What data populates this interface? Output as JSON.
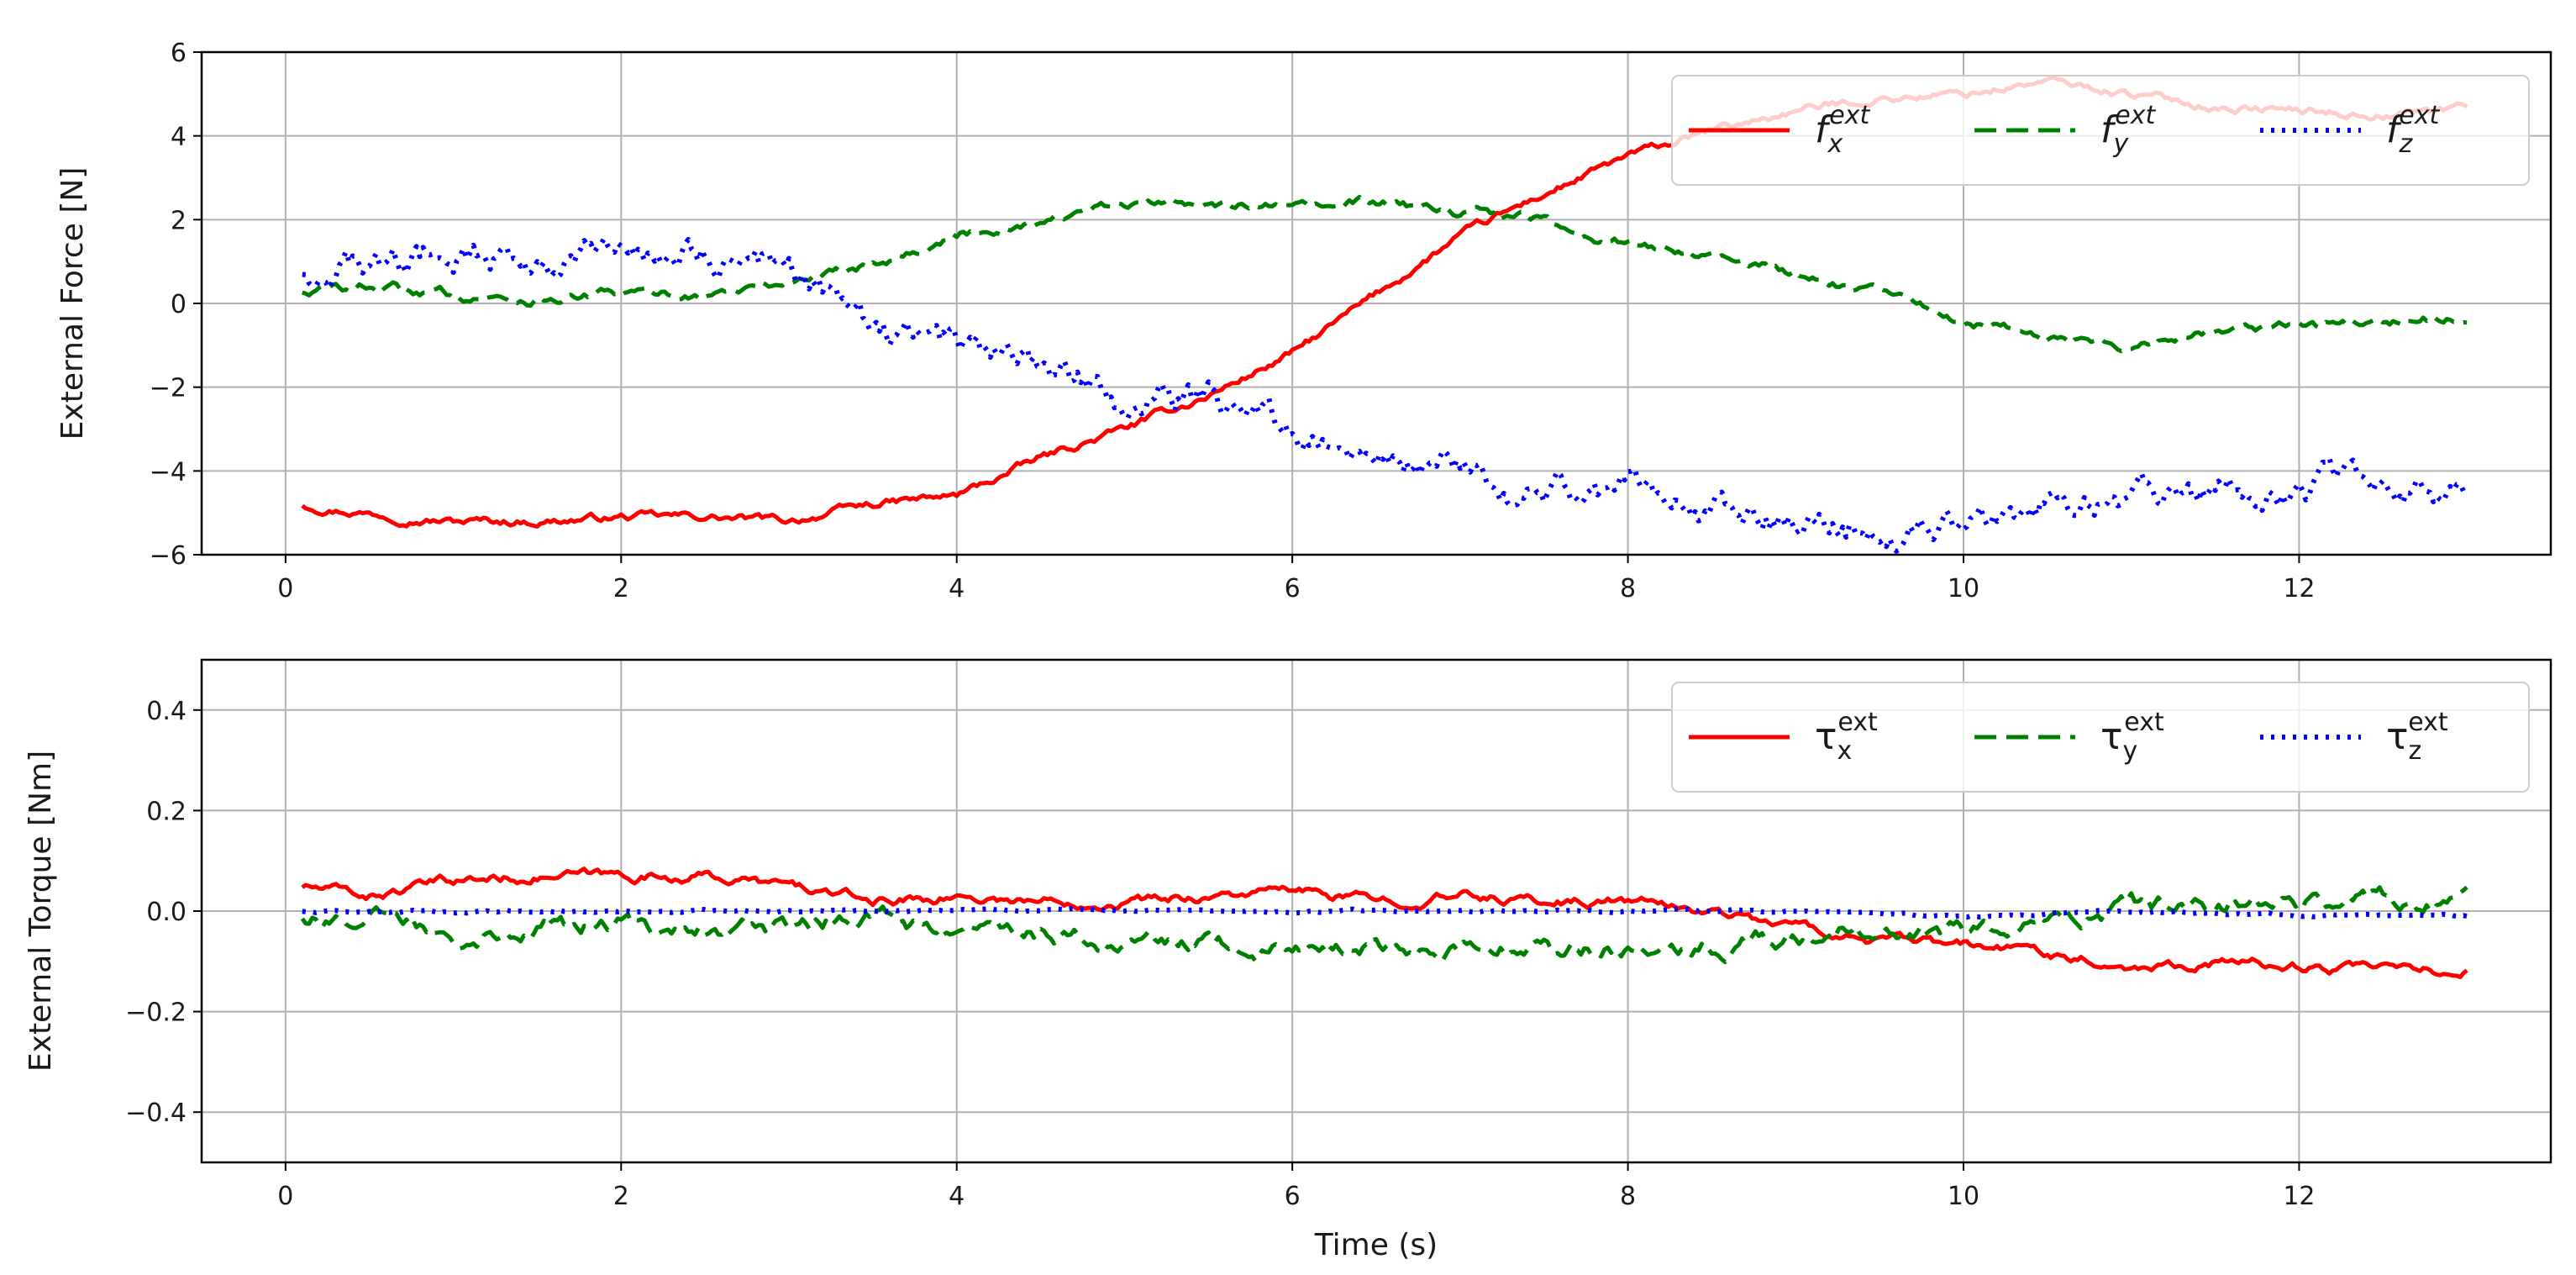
{
  "chart_data": [
    {
      "type": "line",
      "ylabel": "External Force [N]",
      "xlabel": "",
      "xlim": [
        -0.5,
        13.5
      ],
      "ylim": [
        -6,
        6
      ],
      "xticks": [
        0,
        2,
        4,
        6,
        8,
        10,
        12
      ],
      "yticks": [
        -6,
        -4,
        -2,
        0,
        2,
        4,
        6
      ],
      "ytick_labels": [
        "−6",
        "−4",
        "−2",
        "0",
        "2",
        "4",
        "6"
      ],
      "grid": true,
      "legend_position": "top-right",
      "series": [
        {
          "name": "f_x^ext",
          "legend": {
            "base": "f",
            "sub": "x",
            "sup": "ext",
            "italic": true
          },
          "color": "#ff0000",
          "style": "solid",
          "noise": 0.12,
          "x": [
            0.1,
            0.5,
            1.0,
            1.5,
            2.0,
            2.5,
            3.0,
            3.5,
            4.0,
            4.5,
            5.0,
            5.5,
            6.0,
            6.5,
            7.0,
            7.5,
            8.0,
            8.5,
            9.0,
            9.5,
            10.0,
            10.5,
            11.0,
            11.5,
            12.0,
            12.5,
            13.0
          ],
          "y": [
            -4.8,
            -5.0,
            -5.2,
            -5.2,
            -5.1,
            -5.1,
            -5.2,
            -4.8,
            -4.6,
            -3.7,
            -3.0,
            -2.2,
            -1.2,
            0.2,
            1.6,
            2.6,
            3.5,
            4.1,
            4.6,
            4.9,
            5.0,
            5.3,
            5.0,
            4.7,
            4.6,
            4.5,
            4.7
          ]
        },
        {
          "name": "f_y^ext",
          "legend": {
            "base": "f",
            "sub": "y",
            "sup": "ext",
            "italic": true
          },
          "color": "#008000",
          "style": "dashed",
          "noise": 0.15,
          "x": [
            0.1,
            0.5,
            1.0,
            1.5,
            2.0,
            2.5,
            3.0,
            3.5,
            4.0,
            4.5,
            5.0,
            5.5,
            6.0,
            6.5,
            7.0,
            7.5,
            8.0,
            8.5,
            9.0,
            9.5,
            10.0,
            10.5,
            11.0,
            11.5,
            12.0,
            12.5,
            13.0
          ],
          "y": [
            0.3,
            0.4,
            0.2,
            0.1,
            0.2,
            0.2,
            0.5,
            1.0,
            1.6,
            2.0,
            2.3,
            2.5,
            2.2,
            2.4,
            2.2,
            2.0,
            1.4,
            1.2,
            0.7,
            0.2,
            -0.4,
            -0.8,
            -1.0,
            -0.6,
            -0.5,
            -0.5,
            -0.3
          ]
        },
        {
          "name": "f_z^ext",
          "legend": {
            "base": "f",
            "sub": "z",
            "sup": "ext",
            "italic": true
          },
          "color": "#0000ff",
          "style": "dotted",
          "noise": 0.45,
          "x": [
            0.1,
            0.5,
            1.0,
            1.5,
            2.0,
            2.5,
            3.0,
            3.5,
            4.0,
            4.5,
            5.0,
            5.5,
            6.0,
            6.5,
            7.0,
            7.5,
            8.0,
            8.5,
            9.0,
            9.5,
            10.0,
            10.5,
            11.0,
            11.5,
            12.0,
            12.5,
            13.0
          ],
          "y": [
            0.8,
            0.9,
            1.1,
            1.0,
            1.1,
            1.3,
            0.9,
            -0.6,
            -1.0,
            -1.5,
            -2.3,
            -2.3,
            -3.0,
            -3.6,
            -4.0,
            -4.5,
            -4.4,
            -5.0,
            -5.3,
            -5.4,
            -5.2,
            -4.7,
            -4.8,
            -4.4,
            -4.5,
            -4.2,
            -4.8
          ]
        }
      ]
    },
    {
      "type": "line",
      "ylabel": "External Torque [Nm]",
      "xlabel": "Time (s)",
      "xlim": [
        -0.5,
        13.5
      ],
      "ylim": [
        -0.5,
        0.5
      ],
      "xticks": [
        0,
        2,
        4,
        6,
        8,
        10,
        12
      ],
      "yticks": [
        -0.4,
        -0.2,
        0.0,
        0.2,
        0.4
      ],
      "ytick_labels": [
        "−0.4",
        "−0.2",
        "0.0",
        "0.2",
        "0.4"
      ],
      "grid": true,
      "legend_position": "top-right",
      "series": [
        {
          "name": "τ_x^ext",
          "legend": {
            "base": "τ",
            "sub": "x",
            "sup": "ext",
            "italic": false
          },
          "color": "#ff0000",
          "style": "solid",
          "noise": 0.012,
          "x": [
            0.1,
            0.5,
            1.0,
            1.5,
            2.0,
            2.5,
            3.0,
            3.5,
            4.0,
            4.5,
            5.0,
            5.5,
            6.0,
            6.5,
            7.0,
            7.5,
            8.0,
            8.5,
            9.0,
            9.5,
            10.0,
            10.5,
            11.0,
            11.5,
            12.0,
            12.5,
            13.0
          ],
          "y": [
            0.05,
            0.03,
            0.06,
            0.07,
            0.07,
            0.07,
            0.05,
            0.02,
            0.03,
            0.02,
            0.02,
            0.03,
            0.04,
            0.02,
            0.03,
            0.02,
            0.02,
            0.0,
            -0.03,
            -0.06,
            -0.07,
            -0.08,
            -0.11,
            -0.1,
            -0.11,
            -0.12,
            -0.12
          ]
        },
        {
          "name": "τ_y^ext",
          "legend": {
            "base": "τ",
            "sub": "y",
            "sup": "ext",
            "italic": false
          },
          "color": "#008000",
          "style": "dashed",
          "noise": 0.022,
          "x": [
            0.1,
            0.5,
            1.0,
            1.5,
            2.0,
            2.5,
            3.0,
            3.5,
            4.0,
            4.5,
            5.0,
            5.5,
            6.0,
            6.5,
            7.0,
            7.5,
            8.0,
            8.5,
            9.0,
            9.5,
            10.0,
            10.5,
            11.0,
            11.5,
            12.0,
            12.5,
            13.0
          ],
          "y": [
            -0.01,
            -0.01,
            -0.04,
            -0.03,
            -0.03,
            -0.03,
            -0.03,
            -0.01,
            -0.05,
            -0.04,
            -0.06,
            -0.07,
            -0.08,
            -0.07,
            -0.07,
            -0.07,
            -0.08,
            -0.07,
            -0.05,
            -0.04,
            -0.04,
            -0.03,
            0.01,
            0.01,
            0.02,
            0.02,
            0.01
          ]
        },
        {
          "name": "τ_z^ext",
          "legend": {
            "base": "τ",
            "sub": "z",
            "sup": "ext",
            "italic": false
          },
          "color": "#0000ff",
          "style": "dotted",
          "noise": 0.003,
          "x": [
            0.1,
            1.0,
            2.0,
            3.0,
            4.0,
            5.0,
            6.0,
            7.0,
            8.0,
            9.0,
            10.0,
            11.0,
            12.0,
            13.0
          ],
          "y": [
            0.0,
            0.0,
            0.0,
            0.0,
            0.0,
            0.0,
            0.0,
            0.0,
            0.0,
            0.0,
            -0.01,
            0.0,
            -0.01,
            -0.01
          ]
        }
      ]
    }
  ]
}
